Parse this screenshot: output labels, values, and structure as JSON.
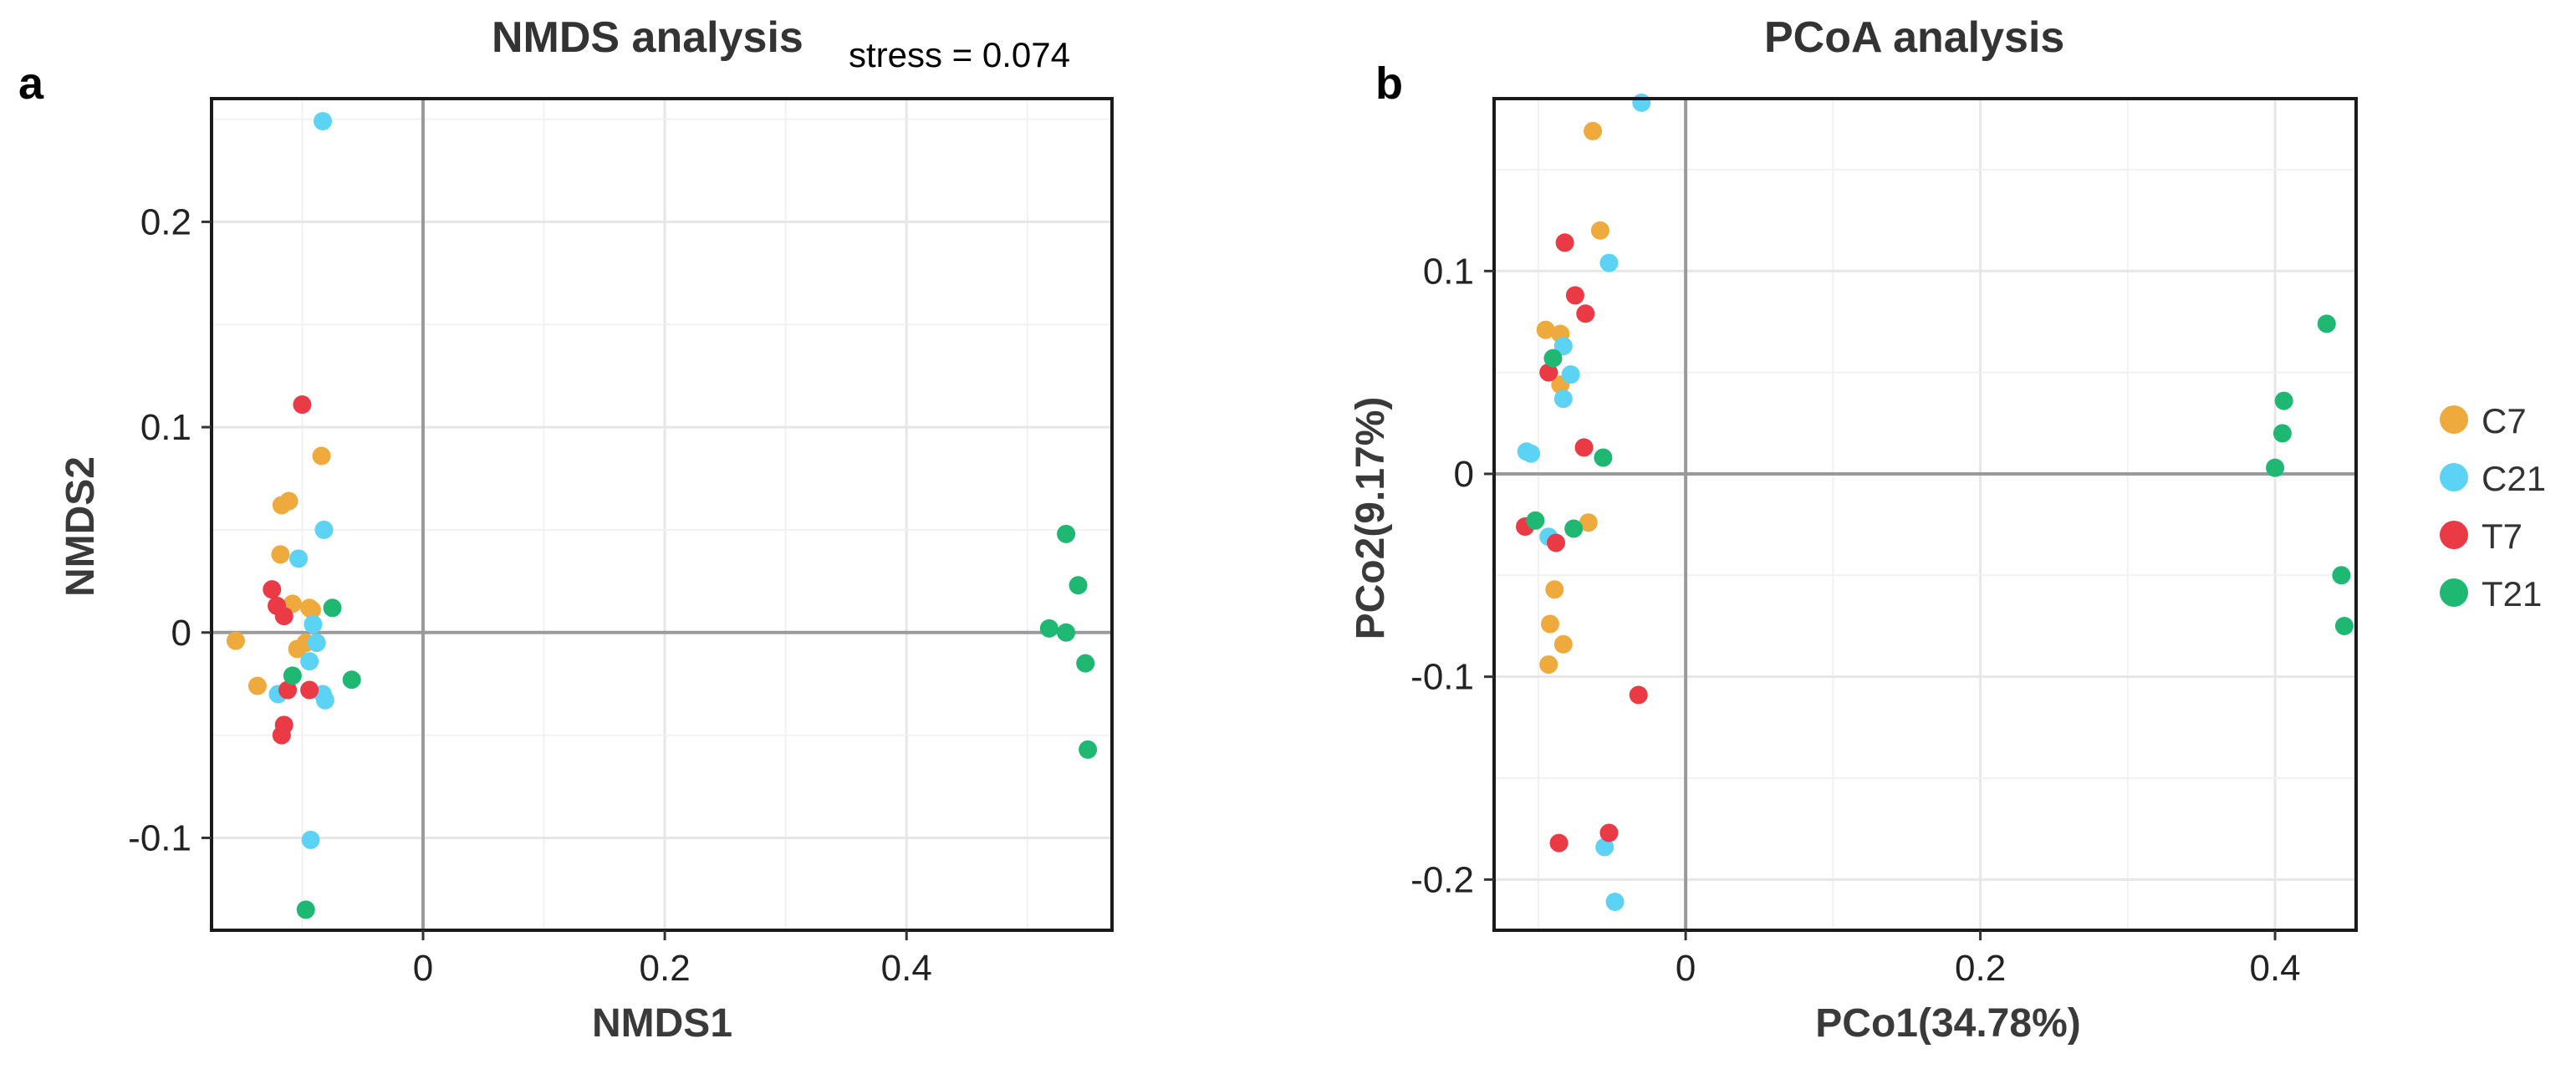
{
  "colors": {
    "C7": "#EEAA3C",
    "C21": "#5CD3F5",
    "T7": "#EA3A46",
    "T21": "#1FB872"
  },
  "legend": {
    "entries": [
      "C7",
      "C21",
      "T7",
      "T21"
    ],
    "placement": "right"
  },
  "panels": [
    {
      "letter": "a",
      "title": "NMDS analysis",
      "note": "stress = 0.074"
    },
    {
      "letter": "b",
      "title": "PCoA analysis",
      "note": ""
    }
  ],
  "chart_data": [
    {
      "type": "scatter",
      "title": "NMDS analysis",
      "subtitle": "stress = 0.074",
      "xlabel": "NMDS1",
      "ylabel": "NMDS2",
      "xlim": [
        -0.175,
        0.57
      ],
      "ylim": [
        -0.145,
        0.26
      ],
      "xticks": [
        0,
        0.2,
        0.4
      ],
      "xtick_labels": [
        "0",
        "0.2",
        "0.4"
      ],
      "yticks": [
        -0.1,
        0,
        0.1,
        0.2
      ],
      "ytick_labels": [
        "-0.1",
        "0",
        "0.1",
        "0.2"
      ],
      "zero_lines": true,
      "grid": true,
      "series": [
        {
          "name": "C7",
          "points": [
            [
              -0.155,
              -0.004
            ],
            [
              -0.137,
              -0.026
            ],
            [
              -0.118,
              0.038
            ],
            [
              -0.117,
              0.062
            ],
            [
              -0.111,
              0.064
            ],
            [
              -0.108,
              0.014
            ],
            [
              -0.104,
              -0.008
            ],
            [
              -0.097,
              -0.005
            ],
            [
              -0.094,
              0.012
            ],
            [
              -0.092,
              0.011
            ],
            [
              -0.084,
              0.086
            ]
          ]
        },
        {
          "name": "C21",
          "points": [
            [
              -0.12,
              -0.03
            ],
            [
              -0.103,
              0.036
            ],
            [
              -0.094,
              -0.014
            ],
            [
              -0.093,
              -0.101
            ],
            [
              -0.091,
              0.004
            ],
            [
              -0.088,
              -0.005
            ],
            [
              -0.083,
              -0.03
            ],
            [
              -0.083,
              0.249
            ],
            [
              -0.082,
              0.05
            ],
            [
              -0.081,
              -0.033
            ]
          ]
        },
        {
          "name": "T7",
          "points": [
            [
              -0.125,
              0.021
            ],
            [
              -0.121,
              0.013
            ],
            [
              -0.117,
              -0.05
            ],
            [
              -0.115,
              0.008
            ],
            [
              -0.115,
              -0.045
            ],
            [
              -0.112,
              -0.028
            ],
            [
              -0.1,
              0.111
            ],
            [
              -0.094,
              -0.028
            ]
          ]
        },
        {
          "name": "T21",
          "points": [
            [
              -0.108,
              -0.021
            ],
            [
              -0.097,
              -0.135
            ],
            [
              -0.075,
              0.012
            ],
            [
              -0.059,
              -0.023
            ],
            [
              0.518,
              0.002
            ],
            [
              0.532,
              0.0
            ],
            [
              0.532,
              0.048
            ],
            [
              0.542,
              0.023
            ],
            [
              0.548,
              -0.015
            ],
            [
              0.55,
              -0.057
            ]
          ]
        }
      ]
    },
    {
      "type": "scatter",
      "title": "PCoA analysis",
      "xlabel": "PCo1(34.78%)",
      "ylabel": "PCo2(9.17%)",
      "xlim": [
        -0.13,
        0.455
      ],
      "ylim": [
        -0.225,
        0.185
      ],
      "xticks": [
        0,
        0.2,
        0.4
      ],
      "xtick_labels": [
        "0",
        "0.2",
        "0.4"
      ],
      "yticks": [
        -0.2,
        -0.1,
        0,
        0.1
      ],
      "ytick_labels": [
        "-0.2",
        "-0.1",
        "0",
        "0.1"
      ],
      "zero_lines": true,
      "grid": true,
      "series": [
        {
          "name": "C7",
          "points": [
            [
              -0.095,
              0.071
            ],
            [
              -0.093,
              -0.094
            ],
            [
              -0.092,
              -0.074
            ],
            [
              -0.089,
              -0.057
            ],
            [
              -0.085,
              0.069
            ],
            [
              -0.085,
              0.044
            ],
            [
              -0.083,
              -0.084
            ],
            [
              -0.066,
              -0.024
            ],
            [
              -0.063,
              0.169
            ],
            [
              -0.058,
              0.12
            ]
          ]
        },
        {
          "name": "C21",
          "points": [
            [
              -0.108,
              0.011
            ],
            [
              -0.105,
              0.01
            ],
            [
              -0.093,
              -0.031
            ],
            [
              -0.083,
              0.063
            ],
            [
              -0.083,
              0.037
            ],
            [
              -0.078,
              0.049
            ],
            [
              -0.055,
              -0.184
            ],
            [
              -0.052,
              0.104
            ],
            [
              -0.048,
              -0.211
            ],
            [
              -0.03,
              0.183
            ]
          ]
        },
        {
          "name": "T7",
          "points": [
            [
              -0.109,
              -0.026
            ],
            [
              -0.093,
              0.05
            ],
            [
              -0.088,
              -0.034
            ],
            [
              -0.086,
              -0.182
            ],
            [
              -0.082,
              0.114
            ],
            [
              -0.075,
              0.088
            ],
            [
              -0.069,
              0.013
            ],
            [
              -0.068,
              0.079
            ],
            [
              -0.052,
              -0.177
            ],
            [
              -0.032,
              -0.109
            ]
          ]
        },
        {
          "name": "T21",
          "points": [
            [
              -0.102,
              -0.023
            ],
            [
              -0.09,
              0.057
            ],
            [
              -0.076,
              -0.027
            ],
            [
              -0.056,
              0.008
            ],
            [
              0.4,
              0.003
            ],
            [
              0.405,
              0.02
            ],
            [
              0.406,
              0.036
            ],
            [
              0.435,
              0.074
            ],
            [
              0.445,
              -0.05
            ],
            [
              0.447,
              -0.075
            ]
          ]
        }
      ]
    }
  ]
}
